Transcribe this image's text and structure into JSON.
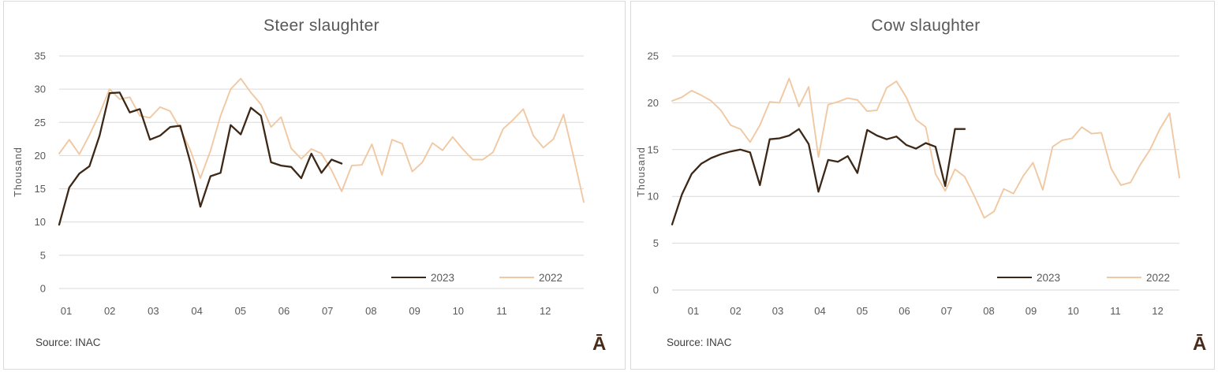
{
  "watermark": "Ā",
  "colors": {
    "series_2023": "#3D2817",
    "series_2022": "#F0C8A2",
    "grid": "#D9D9D9",
    "panel_border": "#D9D9D9",
    "title_text": "#595959",
    "axis_text": "#595959",
    "source_text": "#3F3F3F",
    "watermark": "#4A2B17",
    "background": "#FFFFFF"
  },
  "chart_data": [
    {
      "type": "line",
      "title": "Steer slaughter",
      "ylabel": "Thousand",
      "xlabel": "",
      "x_months": [
        "01",
        "02",
        "03",
        "04",
        "05",
        "06",
        "07",
        "08",
        "09",
        "10",
        "11",
        "12"
      ],
      "x_unit": "weekly observations across the year",
      "ylim": [
        0,
        35
      ],
      "yticks": [
        35,
        30,
        25,
        20,
        15,
        10,
        5,
        0
      ],
      "ytick_interval": 5,
      "grid": true,
      "legend_position": "bottom-right",
      "source": "Source: INAC",
      "weeks_total": 53,
      "series": [
        {
          "name": "2022",
          "color": "#F0C8A2",
          "start_week": 1,
          "values": [
            20.3,
            22.4,
            20.2,
            23.1,
            26.3,
            30.0,
            28.5,
            28.8,
            26.0,
            25.7,
            27.3,
            26.7,
            24.0,
            20.8,
            16.6,
            20.7,
            26.0,
            30.0,
            31.6,
            29.5,
            27.7,
            24.3,
            25.8,
            21.1,
            19.5,
            21.0,
            20.3,
            17.8,
            14.6,
            18.5,
            18.6,
            21.7,
            17.1,
            22.4,
            21.8,
            17.6,
            19.0,
            21.9,
            20.8,
            22.8,
            21.0,
            19.4,
            19.4,
            20.5,
            24.0,
            25.4,
            27.0,
            23.0,
            21.2,
            22.5,
            26.2,
            19.8,
            13.0
          ]
        },
        {
          "name": "2023",
          "color": "#3D2817",
          "start_week": 1,
          "values": [
            9.6,
            15.2,
            17.3,
            18.4,
            23.0,
            29.4,
            29.5,
            26.5,
            27.0,
            22.4,
            23.0,
            24.3,
            24.5,
            19.0,
            12.3,
            16.9,
            17.4,
            24.6,
            23.2,
            27.2,
            26.0,
            19.0,
            18.5,
            18.3,
            16.6,
            20.3,
            17.4,
            19.4,
            18.8
          ]
        }
      ]
    },
    {
      "type": "line",
      "title": "Cow slaughter",
      "ylabel": "Thousand",
      "xlabel": "",
      "x_months": [
        "01",
        "02",
        "03",
        "04",
        "05",
        "06",
        "07",
        "08",
        "09",
        "10",
        "11",
        "12"
      ],
      "x_unit": "weekly observations across the year",
      "ylim": [
        0,
        25
      ],
      "yticks": [
        25,
        20,
        15,
        10,
        5,
        0
      ],
      "ytick_interval": 5,
      "grid": true,
      "legend_position": "bottom-right",
      "source": "Source: INAC",
      "weeks_total": 53,
      "series": [
        {
          "name": "2022",
          "color": "#F0C8A2",
          "start_week": 1,
          "values": [
            20.2,
            20.6,
            21.3,
            20.8,
            20.2,
            19.2,
            17.6,
            17.2,
            15.8,
            17.6,
            20.1,
            20.0,
            22.6,
            19.6,
            21.7,
            14.2,
            19.8,
            20.1,
            20.5,
            20.3,
            19.1,
            19.2,
            21.6,
            22.3,
            20.6,
            18.2,
            17.4,
            12.4,
            10.6,
            12.9,
            12.1,
            10.0,
            7.7,
            8.4,
            10.8,
            10.3,
            12.2,
            13.6,
            10.7,
            15.3,
            16.0,
            16.2,
            17.4,
            16.7,
            16.8,
            13.0,
            11.2,
            11.5,
            13.4,
            15.0,
            17.2,
            18.9,
            12.0
          ]
        },
        {
          "name": "2023",
          "color": "#3D2817",
          "start_week": 1,
          "values": [
            7.0,
            10.2,
            12.4,
            13.5,
            14.1,
            14.5,
            14.8,
            15.0,
            14.7,
            11.2,
            16.1,
            16.2,
            16.5,
            17.2,
            15.6,
            10.5,
            13.9,
            13.7,
            14.3,
            12.5,
            17.1,
            16.5,
            16.1,
            16.4,
            15.5,
            15.1,
            15.7,
            15.3,
            11.1,
            17.2,
            17.2
          ]
        }
      ]
    }
  ],
  "legend_order": [
    "2023",
    "2022"
  ]
}
